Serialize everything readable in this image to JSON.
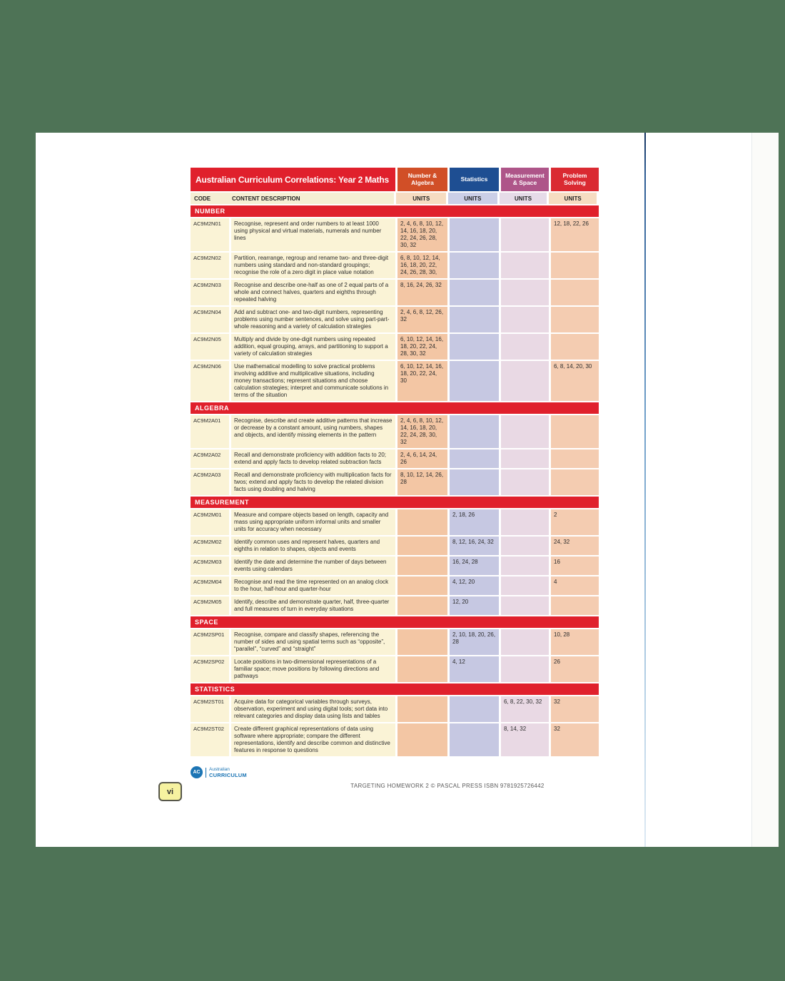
{
  "document": {
    "title": "Australian Curriculum Correlations: Year 2 Maths",
    "header": {
      "code_label": "CODE",
      "description_label": "CONTENT DESCRIPTION",
      "units_label": "UNITS",
      "strand_columns": [
        {
          "label": "Number & Algebra",
          "color": "#d14f27"
        },
        {
          "label": "Statistics",
          "color": "#1e4e92"
        },
        {
          "label": "Measurement & Space",
          "color": "#ae5589"
        },
        {
          "label": "Problem Solving",
          "color": "#da2a32"
        }
      ]
    },
    "sections": [
      {
        "name": "NUMBER",
        "rows": [
          {
            "code": "AC9M2N01",
            "description": "Recognise, represent and order numbers to at least 1000 using physical and virtual materials, numerals and number lines",
            "number_algebra": "2, 4, 6, 8, 10, 12, 14, 16, 18, 20, 22, 24, 26, 28, 30, 32",
            "statistics": "",
            "measurement_space": "",
            "problem_solving": "12, 18, 22, 26"
          },
          {
            "code": "AC9M2N02",
            "description": "Partition, rearrange, regroup and rename two- and three-digit numbers using standard and non-standard groupings; recognise the role of a zero digit in place value notation",
            "number_algebra": "6, 8, 10, 12, 14, 16, 18, 20, 22, 24, 26, 28, 30,",
            "statistics": "",
            "measurement_space": "",
            "problem_solving": ""
          },
          {
            "code": "AC9M2N03",
            "description": "Recognise and describe one-half as one of 2 equal parts of a whole and connect halves, quarters and eighths through repeated halving",
            "number_algebra": "8, 16, 24, 26, 32",
            "statistics": "",
            "measurement_space": "",
            "problem_solving": ""
          },
          {
            "code": "AC9M2N04",
            "description": "Add and subtract one- and two-digit numbers, representing problems using number sentences, and solve using part-part-whole reasoning and a variety of calculation strategies",
            "number_algebra": "2, 4, 6, 8, 12, 26, 32",
            "statistics": "",
            "measurement_space": "",
            "problem_solving": ""
          },
          {
            "code": "AC9M2N05",
            "description": "Multiply and divide by one-digit numbers using repeated addition, equal grouping, arrays, and partitioning to support a variety of calculation strategies",
            "number_algebra": "6, 10, 12, 14, 16, 18, 20, 22, 24, 28, 30, 32",
            "statistics": "",
            "measurement_space": "",
            "problem_solving": ""
          },
          {
            "code": "AC9M2N06",
            "description": "Use mathematical modelling to solve practical problems involving additive and multiplicative situations, including money transactions; represent situations and choose calculation strategies; interpret and communicate solutions in terms of the situation",
            "number_algebra": "6, 10, 12, 14, 16, 18, 20, 22, 24, 30",
            "statistics": "",
            "measurement_space": "",
            "problem_solving": "6, 8, 14, 20, 30"
          }
        ]
      },
      {
        "name": "ALGEBRA",
        "rows": [
          {
            "code": "AC9M2A01",
            "description": "Recognise, describe and create additive patterns that increase or decrease by a constant amount, using numbers, shapes and objects, and identify missing elements in the pattern",
            "number_algebra": "2, 4, 6, 8, 10, 12, 14, 16, 18, 20, 22, 24, 28, 30, 32",
            "statistics": "",
            "measurement_space": "",
            "problem_solving": ""
          },
          {
            "code": "AC9M2A02",
            "description": "Recall and demonstrate proficiency with addition facts to 20; extend and apply facts to develop related subtraction facts",
            "number_algebra": "2, 4, 6, 14, 24, 26",
            "statistics": "",
            "measurement_space": "",
            "problem_solving": ""
          },
          {
            "code": "AC9M2A03",
            "description": "Recall and demonstrate proficiency with multiplication facts for twos; extend and apply facts to develop the related division facts using doubling and halving",
            "number_algebra": "8, 10, 12, 14, 26, 28",
            "statistics": "",
            "measurement_space": "",
            "problem_solving": ""
          }
        ]
      },
      {
        "name": "MEASUREMENT",
        "rows": [
          {
            "code": "AC9M2M01",
            "description": "Measure and compare objects based on length, capacity and mass using appropriate uniform informal units and smaller units for accuracy when necessary",
            "number_algebra": "",
            "statistics": "2, 18, 26",
            "measurement_space": "",
            "problem_solving": "2"
          },
          {
            "code": "AC9M2M02",
            "description": "Identify common uses and represent halves, quarters and eighths in relation to shapes, objects and events",
            "number_algebra": "",
            "statistics": "8, 12, 16, 24, 32",
            "measurement_space": "",
            "problem_solving": "24, 32"
          },
          {
            "code": "AC9M2M03",
            "description": "Identify the date and determine the number of days between events using calendars",
            "number_algebra": "",
            "statistics": "16, 24, 28",
            "measurement_space": "",
            "problem_solving": "16"
          },
          {
            "code": "AC9M2M04",
            "description": "Recognise and read the time represented on an analog clock to the hour, half-hour and quarter-hour",
            "number_algebra": "",
            "statistics": "4, 12, 20",
            "measurement_space": "",
            "problem_solving": "4"
          },
          {
            "code": "AC9M2M05",
            "description": "Identify, describe and demonstrate quarter, half, three-quarter and full measures of turn in everyday situations",
            "number_algebra": "",
            "statistics": "12, 20",
            "measurement_space": "",
            "problem_solving": ""
          }
        ]
      },
      {
        "name": "SPACE",
        "rows": [
          {
            "code": "AC9M2SP01",
            "description": "Recognise, compare and classify shapes, referencing the number of sides and using spatial terms such as “opposite”, “parallel”, “curved” and “straight”",
            "number_algebra": "",
            "statistics": "2, 10, 18, 20, 26, 28",
            "measurement_space": "",
            "problem_solving": "10, 28"
          },
          {
            "code": "AC9M2SP02",
            "description": "Locate positions in two-dimensional representations of a familiar space; move positions by following directions and pathways",
            "number_algebra": "",
            "statistics": "4, 12",
            "measurement_space": "",
            "problem_solving": "26"
          }
        ]
      },
      {
        "name": "STATISTICS",
        "rows": [
          {
            "code": "AC9M2ST01",
            "description": "Acquire data for categorical variables through surveys, observation, experiment and using digital tools; sort data into relevant categories and display data using lists and tables",
            "number_algebra": "",
            "statistics": "",
            "measurement_space": "6, 8, 22, 30, 32",
            "problem_solving": "32"
          },
          {
            "code": "AC9M2ST02",
            "description": "Create different graphical representations of data using software where appropriate; compare the different representations, identify and describe common and distinctive features in response to questions",
            "number_algebra": "",
            "statistics": "",
            "measurement_space": "8, 14, 32",
            "problem_solving": "32"
          }
        ]
      }
    ],
    "footer": {
      "logo_initials": "AC",
      "logo_line1": "Australian",
      "logo_line2": "CURRICULUM",
      "page_number": "vi",
      "imprint": "TARGETING HOMEWORK 2 © PASCAL PRESS ISBN 9781925726442"
    },
    "colors": {
      "background_green": "#4e7356",
      "section_red": "#e0202c",
      "number_algebra_header": "#d14f27",
      "statistics_header": "#1e4e92",
      "measurement_space_header": "#ae5589",
      "problem_solving_header": "#da2a32",
      "number_algebra_cell": "#f3c6a4",
      "statistics_cell": "#c6c8e2",
      "measurement_space_cell": "#e9d9e4",
      "problem_solving_cell": "#f4ccb1",
      "code_description_cell": "#faf3d6",
      "subheader_cream": "#f5eed3",
      "logo_blue": "#1b74b4",
      "page_badge_yellow": "#f6f2a0"
    }
  }
}
